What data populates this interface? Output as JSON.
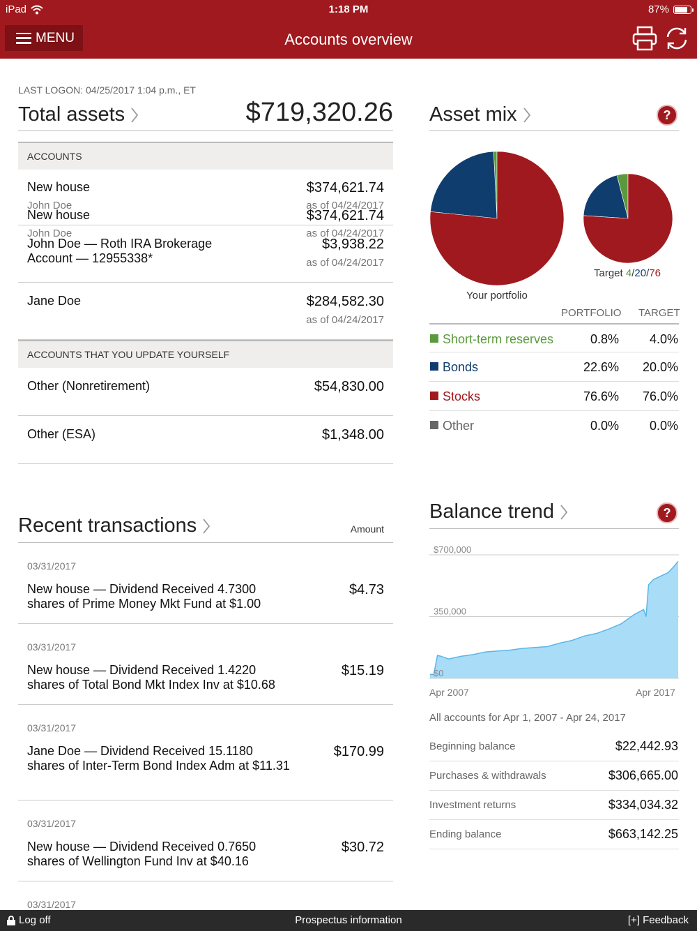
{
  "status": {
    "device": "iPad",
    "time": "1:18 PM",
    "battery": "87%",
    "battery_level": 0.87
  },
  "header": {
    "menu_label": "MENU",
    "title": "Accounts overview",
    "print_icon": "print-icon",
    "refresh_icon": "refresh-icon"
  },
  "colors": {
    "brand_red": "#a0191e",
    "short_term": "#5b9a3c",
    "bonds": "#0f3d6e",
    "stocks": "#a0191e",
    "other": "#666666",
    "trend_fill": "#a9dcf7"
  },
  "last_logon": "LAST LOGON: 04/25/2017 1:04 p.m., ET",
  "total_assets": {
    "label": "Total assets",
    "value": "$719,320.26"
  },
  "accounts": {
    "header": "ACCOUNTS",
    "items": [
      {
        "name": "New house",
        "owner": "John Doe",
        "amount": "$374,621.74",
        "as_of": "as of 04/24/2017"
      },
      {
        "name": "John Doe — Roth IRA Brokerage Account — 12955338*",
        "amount": "$3,938.22",
        "as_of": "as of 04/24/2017"
      },
      {
        "name": "Jane Doe",
        "amount": "$284,582.30",
        "as_of": "as of 04/24/2017"
      }
    ]
  },
  "self_accounts": {
    "header": "ACCOUNTS THAT YOU UPDATE YOURSELF",
    "items": [
      {
        "name": "Other (Nonretirement)",
        "amount": "$54,830.00"
      },
      {
        "name": "Other (ESA)",
        "amount": "$1,348.00"
      }
    ]
  },
  "recent": {
    "title": "Recent transactions",
    "amount_header": "Amount",
    "items": [
      {
        "date": "03/31/2017",
        "desc": "New house — Dividend Received 4.7300 shares of Prime Money Mkt Fund at $1.00",
        "amount": "$4.73"
      },
      {
        "date": "03/31/2017",
        "desc": "New house — Dividend Received 1.4220 shares of Total Bond Mkt Index Inv at $10.68",
        "amount": "$15.19"
      },
      {
        "date": "03/31/2017",
        "desc": "Jane Doe — Dividend Received 15.1180 shares of Inter-Term Bond Index Adm at $11.31",
        "amount": "$170.99"
      },
      {
        "date": "03/31/2017",
        "desc": "New house — Dividend Received 0.7650 shares of Wellington Fund Inv at $40.16",
        "amount": "$30.72"
      },
      {
        "date": "03/31/2017"
      }
    ]
  },
  "asset_mix": {
    "title": "Asset mix",
    "help": "?",
    "portfolio_label": "Your portfolio",
    "target_prefix": "Target ",
    "target_short": "4",
    "target_bonds": "20",
    "target_stocks": "76",
    "slash": "/",
    "col_portfolio": "PORTFOLIO",
    "col_target": "TARGET",
    "rows": [
      {
        "label": "Short-term reserves",
        "portfolio": "0.8%",
        "target": "4.0%"
      },
      {
        "label": "Bonds",
        "portfolio": "22.6%",
        "target": "20.0%"
      },
      {
        "label": "Stocks",
        "portfolio": "76.6%",
        "target": "76.0%"
      },
      {
        "label": "Other",
        "portfolio": "0.0%",
        "target": "0.0%"
      }
    ]
  },
  "chart_data": [
    {
      "type": "pie",
      "title": "Your portfolio",
      "categories": [
        "Short-term reserves",
        "Bonds",
        "Stocks",
        "Other"
      ],
      "values": [
        0.8,
        22.6,
        76.6,
        0.0
      ],
      "colors": [
        "#5b9a3c",
        "#0f3d6e",
        "#a0191e",
        "#666666"
      ]
    },
    {
      "type": "pie",
      "title": "Target",
      "categories": [
        "Short-term reserves",
        "Bonds",
        "Stocks",
        "Other"
      ],
      "values": [
        4,
        20,
        76,
        0
      ],
      "colors": [
        "#5b9a3c",
        "#0f3d6e",
        "#a0191e",
        "#666666"
      ]
    },
    {
      "type": "area",
      "title": "Balance trend",
      "ylim": [
        0,
        700000
      ],
      "yticks": [
        "$700,000",
        "350,000",
        "$0"
      ],
      "xticks": [
        "Apr 2007",
        "Apr 2017"
      ],
      "x": [
        2007.25,
        2007.4,
        2007.55,
        2007.7,
        2008.0,
        2008.5,
        2009.0,
        2009.5,
        2010.0,
        2010.5,
        2011.0,
        2011.5,
        2012.0,
        2012.5,
        2013.0,
        2013.5,
        2014.0,
        2014.5,
        2015.0,
        2015.5,
        2015.9,
        2016.0,
        2016.1,
        2016.3,
        2016.6,
        2016.9,
        2017.1,
        2017.3
      ],
      "values": [
        22443,
        22443,
        130000,
        125000,
        110000,
        125000,
        135000,
        150000,
        155000,
        160000,
        170000,
        175000,
        180000,
        200000,
        215000,
        240000,
        255000,
        280000,
        310000,
        360000,
        390000,
        350000,
        530000,
        560000,
        580000,
        600000,
        630000,
        663142
      ]
    }
  ],
  "balance_trend": {
    "title": "Balance trend",
    "help": "?",
    "caption": "All accounts for Apr 1, 2007 - Apr 24, 2017",
    "rows": [
      {
        "label": "Beginning balance",
        "value": "$22,442.93"
      },
      {
        "label": "Purchases & withdrawals",
        "value": "$306,665.00"
      },
      {
        "label": "Investment returns",
        "value": "$334,034.32"
      },
      {
        "label": "Ending balance",
        "value": "$663,142.25"
      }
    ]
  },
  "footer": {
    "logoff": "Log off",
    "prospectus": "Prospectus information",
    "feedback": "[+] Feedback"
  }
}
